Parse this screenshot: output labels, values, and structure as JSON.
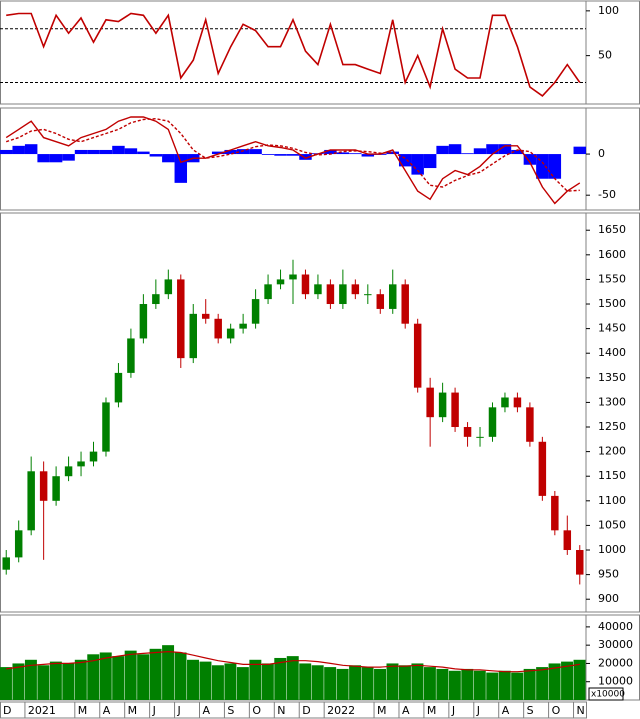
{
  "chart_data": [
    {
      "type": "line",
      "ylim": [
        -4,
        111
      ],
      "yticks": [
        50,
        100
      ],
      "ref_lines": [
        20,
        80
      ],
      "series": [
        {
          "color": "#c00000",
          "values": [
            95,
            97,
            97,
            60,
            95,
            75,
            92,
            65,
            90,
            88,
            97,
            95,
            75,
            95,
            25,
            45,
            90,
            30,
            60,
            85,
            78,
            60,
            60,
            90,
            55,
            40,
            85,
            40,
            40,
            35,
            30,
            90,
            20,
            50,
            15,
            80,
            35,
            25,
            25,
            95,
            95,
            60,
            15,
            5,
            20,
            40,
            20
          ]
        }
      ]
    },
    {
      "type": "macd",
      "ylim": [
        -68,
        56
      ],
      "yticks": [
        -50,
        0
      ],
      "series": [
        {
          "color": "#c00000",
          "values": [
            20,
            30,
            40,
            20,
            15,
            10,
            20,
            25,
            30,
            40,
            45,
            45,
            40,
            30,
            -10,
            -5,
            -5,
            0,
            5,
            10,
            15,
            10,
            8,
            5,
            -5,
            0,
            5,
            5,
            5,
            0,
            0,
            5,
            -20,
            -45,
            -55,
            -30,
            -20,
            -25,
            -15,
            0,
            10,
            10,
            -10,
            -40,
            -60,
            -45,
            -35
          ]
        },
        {
          "color": "#c00000",
          "dashed": true,
          "values": [
            15,
            20,
            28,
            30,
            25,
            18,
            15,
            20,
            25,
            30,
            38,
            42,
            43,
            40,
            25,
            5,
            -5,
            -3,
            0,
            4,
            9,
            11,
            10,
            7,
            2,
            -1,
            0,
            3,
            4,
            3,
            1,
            2,
            -5,
            -20,
            -38,
            -40,
            -32,
            -26,
            -22,
            -12,
            -2,
            5,
            3,
            -10,
            -30,
            -45,
            -44
          ]
        }
      ],
      "histogram": {
        "color": "#0000ff",
        "values": [
          5,
          10,
          12,
          -10,
          -10,
          -8,
          5,
          5,
          5,
          10,
          7,
          3,
          -3,
          -10,
          -35,
          -10,
          0,
          3,
          5,
          6,
          6,
          -1,
          -2,
          -2,
          -7,
          1,
          5,
          2,
          1,
          -3,
          -1,
          3,
          -15,
          -25,
          -17,
          10,
          12,
          1,
          7,
          12,
          12,
          5,
          -13,
          -30,
          -30,
          0,
          9
        ]
      }
    },
    {
      "type": "candlestick",
      "ylim": [
        874,
        1685
      ],
      "yticks": [
        900,
        950,
        1000,
        1050,
        1100,
        1150,
        1200,
        1250,
        1300,
        1350,
        1400,
        1450,
        1500,
        1550,
        1600,
        1650
      ],
      "up_color": "#008000",
      "down_color": "#c00000",
      "open": [
        960,
        985,
        1040,
        1160,
        1100,
        1150,
        1170,
        1180,
        1200,
        1300,
        1360,
        1430,
        1500,
        1520,
        1550,
        1390,
        1480,
        1470,
        1430,
        1450,
        1460,
        1510,
        1540,
        1550,
        1560,
        1520,
        1540,
        1500,
        1540,
        1520,
        1520,
        1490,
        1540,
        1460,
        1330,
        1270,
        1320,
        1250,
        1230,
        1230,
        1290,
        1310,
        1290,
        1220,
        1110,
        1040,
        1000
      ],
      "high": [
        1000,
        1060,
        1190,
        1180,
        1170,
        1190,
        1200,
        1220,
        1310,
        1380,
        1450,
        1520,
        1550,
        1570,
        1560,
        1500,
        1510,
        1480,
        1460,
        1480,
        1530,
        1560,
        1570,
        1590,
        1570,
        1560,
        1550,
        1570,
        1550,
        1540,
        1530,
        1570,
        1550,
        1470,
        1350,
        1340,
        1330,
        1260,
        1250,
        1300,
        1320,
        1320,
        1300,
        1230,
        1120,
        1070,
        1010
      ],
      "low": [
        950,
        975,
        1030,
        980,
        1090,
        1140,
        1150,
        1170,
        1190,
        1290,
        1350,
        1420,
        1490,
        1510,
        1370,
        1380,
        1460,
        1420,
        1420,
        1440,
        1450,
        1500,
        1530,
        1500,
        1510,
        1510,
        1490,
        1490,
        1510,
        1500,
        1480,
        1480,
        1450,
        1320,
        1210,
        1260,
        1240,
        1210,
        1210,
        1220,
        1280,
        1280,
        1210,
        1100,
        1030,
        990,
        930
      ],
      "close": [
        985,
        1040,
        1160,
        1100,
        1150,
        1170,
        1180,
        1200,
        1300,
        1360,
        1430,
        1500,
        1520,
        1550,
        1390,
        1480,
        1470,
        1430,
        1450,
        1460,
        1510,
        1540,
        1550,
        1560,
        1520,
        1540,
        1500,
        1540,
        1520,
        1520,
        1490,
        1540,
        1460,
        1330,
        1270,
        1320,
        1250,
        1230,
        1230,
        1290,
        1310,
        1290,
        1220,
        1110,
        1040,
        1000,
        950
      ]
    },
    {
      "type": "bar",
      "ylim": [
        0,
        46500
      ],
      "yticks": [
        10000,
        20000,
        30000,
        40000
      ],
      "unit_label": "x10000",
      "color": "#008000",
      "categories": [
        "D",
        null,
        "2021",
        null,
        null,
        null,
        "M",
        null,
        "A",
        null,
        "M",
        null,
        "J",
        null,
        "J",
        null,
        "A",
        null,
        "S",
        null,
        "O",
        null,
        "N",
        null,
        "D",
        null,
        "2022",
        null,
        null,
        null,
        "M",
        null,
        "A",
        null,
        "M",
        null,
        "J",
        null,
        "J",
        null,
        "A",
        null,
        "S",
        null,
        "O",
        null,
        "N"
      ],
      "values": [
        18000,
        20000,
        22000,
        19000,
        21000,
        20000,
        22000,
        25000,
        26000,
        24000,
        27000,
        25000,
        28000,
        30000,
        26000,
        22000,
        21000,
        19000,
        20000,
        18000,
        22000,
        20000,
        23000,
        24000,
        20000,
        19000,
        18000,
        17000,
        19000,
        18000,
        17000,
        20000,
        19000,
        20000,
        18000,
        17000,
        16000,
        17000,
        16000,
        15000,
        16000,
        15000,
        17000,
        18000,
        20000,
        21000,
        22000
      ],
      "line": {
        "color": "#c00000",
        "values": [
          17000,
          18000,
          19000,
          19500,
          20000,
          20000,
          20500,
          21500,
          23000,
          24000,
          25000,
          25500,
          26000,
          26500,
          26000,
          24500,
          23000,
          21500,
          20500,
          19500,
          19500,
          19500,
          20500,
          21500,
          21500,
          21000,
          20000,
          19000,
          18500,
          18000,
          18000,
          18500,
          18500,
          19000,
          18500,
          18000,
          17000,
          16500,
          16500,
          16000,
          15500,
          15500,
          16000,
          16500,
          17500,
          18500,
          19500
        ]
      }
    }
  ]
}
